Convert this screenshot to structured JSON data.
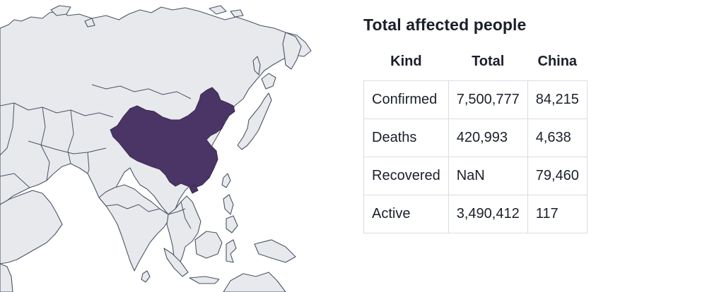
{
  "map": {
    "region": "Asia",
    "highlighted_country": "China",
    "highlight_color": "#4a3566",
    "land_color": "#e8e9ec",
    "border_color": "#4a5466"
  },
  "stats": {
    "title": "Total affected people",
    "headers": [
      "Kind",
      "Total",
      "China"
    ],
    "rows": [
      {
        "kind": "Confirmed",
        "total": "7,500,777",
        "china": "84,215"
      },
      {
        "kind": "Deaths",
        "total": "420,993",
        "china": "4,638"
      },
      {
        "kind": "Recovered",
        "total": "NaN",
        "china": "79,460"
      },
      {
        "kind": "Active",
        "total": "3,490,412",
        "china": "117"
      }
    ]
  }
}
